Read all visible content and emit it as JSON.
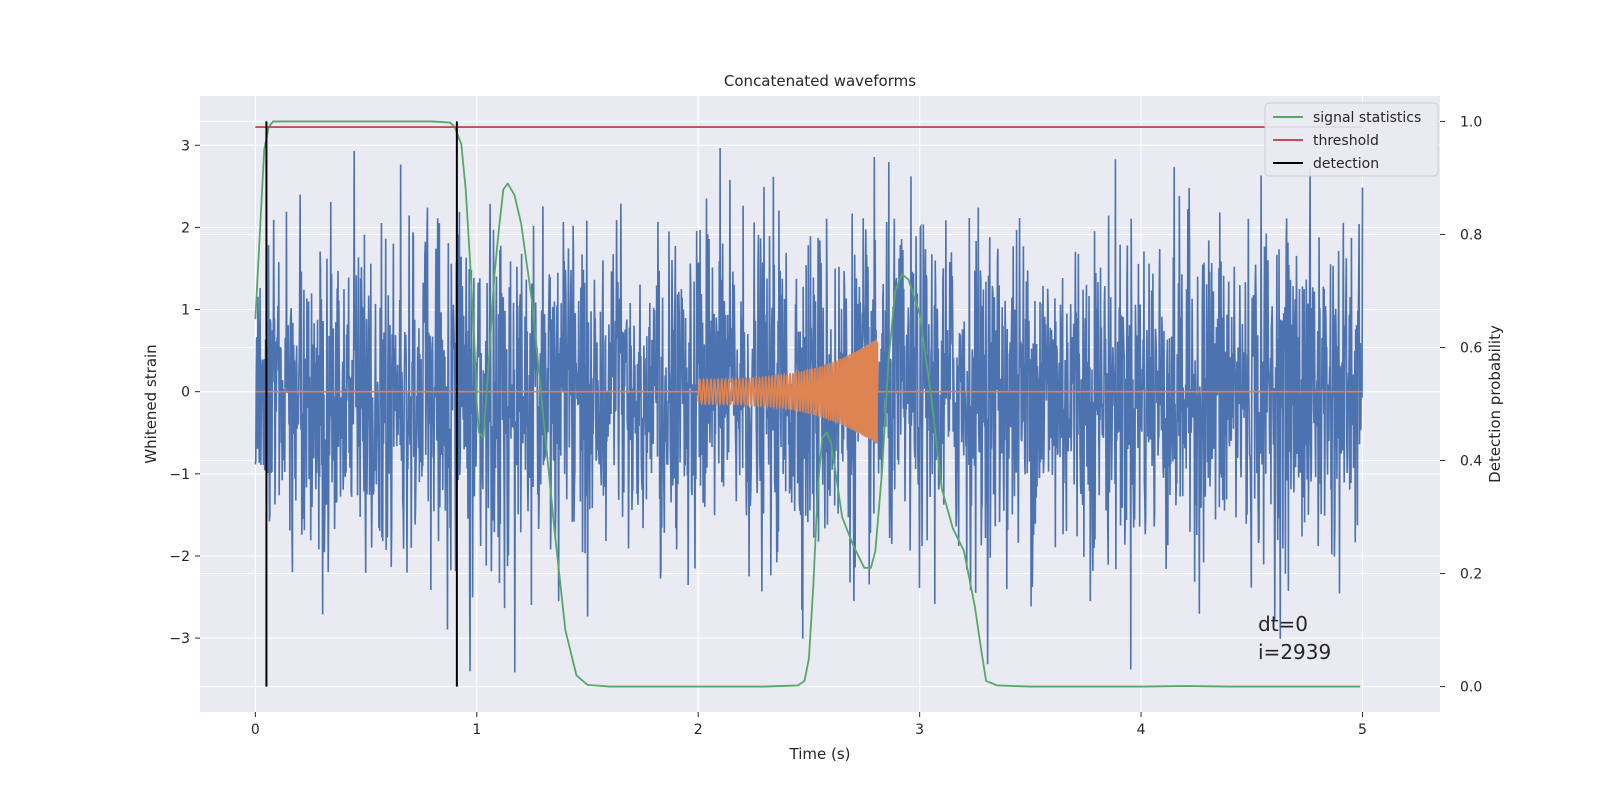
{
  "chart_data": {
    "type": "line",
    "title": "Concatenated waveforms",
    "xlabel": "Time (s)",
    "ylabel_left": "Whitened strain",
    "ylabel_right": "Detection probability",
    "xlim": [
      -0.25,
      5.35
    ],
    "ylim_left": [
      -3.9,
      3.6
    ],
    "ylim_right": [
      -0.045,
      1.045
    ],
    "x_ticks": [
      0,
      1,
      2,
      3,
      4,
      5
    ],
    "x_tick_labels": [
      "0",
      "1",
      "2",
      "3",
      "4",
      "5"
    ],
    "y_left_ticks": [
      -3,
      -2,
      -1,
      0,
      1,
      2,
      3
    ],
    "y_left_tick_labels": [
      "−3",
      "−2",
      "−1",
      "0",
      "1",
      "2",
      "3"
    ],
    "y_right_ticks": [
      0.0,
      0.2,
      0.4,
      0.6,
      0.8,
      1.0
    ],
    "y_right_tick_labels": [
      "0.0",
      "0.2",
      "0.4",
      "0.6",
      "0.8",
      "1.0"
    ],
    "grid": true,
    "legend_position": "top-right",
    "annotations": [
      "dt=0",
      "i=2939"
    ],
    "colors": {
      "background": "#eaeaf2",
      "grid": "#ffffff",
      "strain": "#4c72b0",
      "injection": "#dd8452",
      "statistics": "#55a868",
      "threshold": "#c44e52",
      "detection": "#000000"
    },
    "series": [
      {
        "name": "",
        "axis": "left",
        "color": "#4c72b0",
        "style": "noise",
        "x_range": [
          0,
          5
        ],
        "amplitude": 1.0,
        "peak_min": -3.6,
        "peak_max": 3.3
      },
      {
        "name": "",
        "axis": "left",
        "color": "#dd8452",
        "style": "chirp",
        "x_range": [
          0,
          5
        ],
        "chirp_start": 2.0,
        "chirp_end": 2.81,
        "amplitude_start": 0.15,
        "amplitude_end": 0.65
      },
      {
        "name": "signal statistics",
        "axis": "right",
        "color": "#55a868",
        "x": [
          0.0,
          0.02,
          0.04,
          0.06,
          0.08,
          0.1,
          0.2,
          0.4,
          0.6,
          0.8,
          0.88,
          0.9,
          0.93,
          0.95,
          0.97,
          0.99,
          1.0,
          1.01,
          1.03,
          1.05,
          1.08,
          1.1,
          1.12,
          1.14,
          1.17,
          1.2,
          1.25,
          1.3,
          1.35,
          1.4,
          1.45,
          1.5,
          1.6,
          2.0,
          2.3,
          2.45,
          2.48,
          2.5,
          2.52,
          2.54,
          2.56,
          2.58,
          2.6,
          2.62,
          2.65,
          2.7,
          2.75,
          2.78,
          2.8,
          2.83,
          2.86,
          2.89,
          2.92,
          2.95,
          3.0,
          3.05,
          3.1,
          3.15,
          3.2,
          3.25,
          3.28,
          3.3,
          3.35,
          3.5,
          4.0,
          4.2,
          4.4,
          4.99
        ],
        "y": [
          0.65,
          0.8,
          0.95,
          0.99,
          1.0,
          1.0,
          1.0,
          1.0,
          1.0,
          1.0,
          0.998,
          0.99,
          0.96,
          0.88,
          0.75,
          0.6,
          0.5,
          0.45,
          0.44,
          0.55,
          0.73,
          0.81,
          0.88,
          0.89,
          0.87,
          0.82,
          0.68,
          0.48,
          0.28,
          0.1,
          0.02,
          0.003,
          0.0,
          0.0,
          0.0,
          0.002,
          0.01,
          0.05,
          0.18,
          0.35,
          0.44,
          0.45,
          0.43,
          0.38,
          0.3,
          0.25,
          0.21,
          0.21,
          0.24,
          0.38,
          0.58,
          0.7,
          0.73,
          0.72,
          0.66,
          0.52,
          0.35,
          0.28,
          0.24,
          0.14,
          0.06,
          0.01,
          0.002,
          0.0,
          0.0,
          0.001,
          0.0,
          0.0
        ]
      },
      {
        "name": "threshold",
        "axis": "right",
        "color": "#c44e52",
        "x": [
          0,
          5
        ],
        "y": [
          0.99,
          0.99
        ]
      },
      {
        "name": "detection",
        "axis": "right",
        "color": "#000000",
        "style": "vlines",
        "x": [
          0.05,
          0.91
        ],
        "y_range": [
          0.0,
          1.0
        ]
      }
    ]
  }
}
